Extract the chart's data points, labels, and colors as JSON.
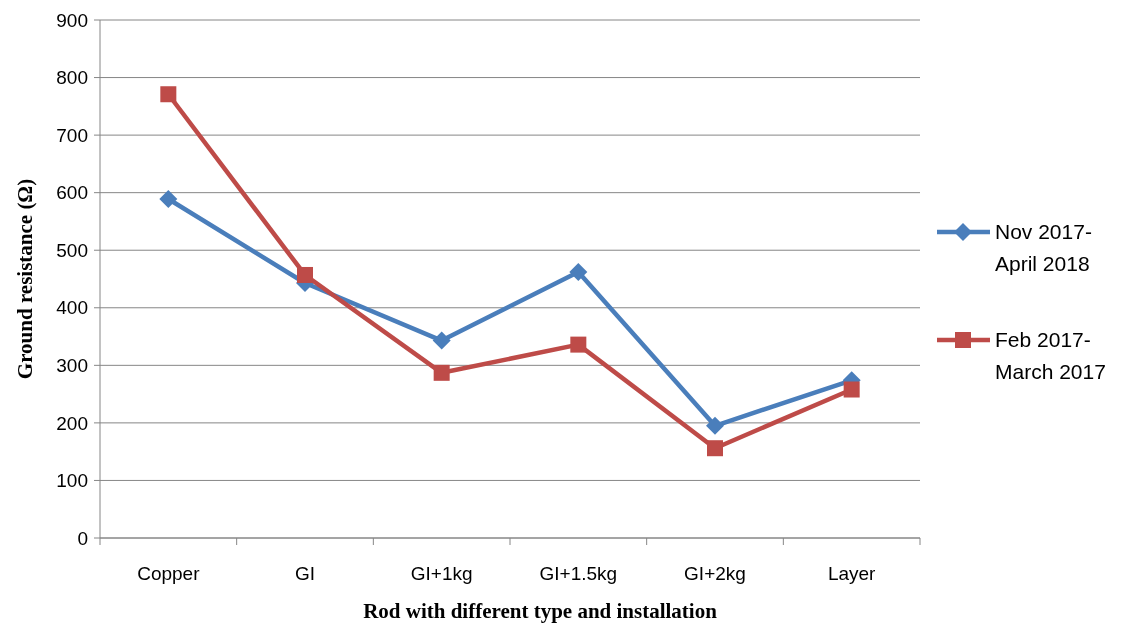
{
  "chart_data": {
    "type": "line",
    "xlabel": "Rod with different type and installation",
    "ylabel": "Ground resistance (Ω)",
    "categories": [
      "Copper",
      "GI",
      "GI+1kg",
      "GI+1.5kg",
      "GI+2kg",
      "Layer"
    ],
    "series": [
      {
        "name": "Nov 2017-April 2018",
        "color": "#4a7ebb",
        "marker": "diamond",
        "values": [
          589,
          443,
          343,
          462,
          195,
          274
        ]
      },
      {
        "name": "Feb 2017-March 2017",
        "color": "#be4b48",
        "marker": "square",
        "values": [
          771,
          457,
          287,
          336,
          156,
          258
        ]
      }
    ],
    "ylim": [
      0,
      900
    ],
    "yticks": [
      0,
      100,
      200,
      300,
      400,
      500,
      600,
      700,
      800,
      900
    ],
    "grid": "y",
    "legend": "right"
  }
}
